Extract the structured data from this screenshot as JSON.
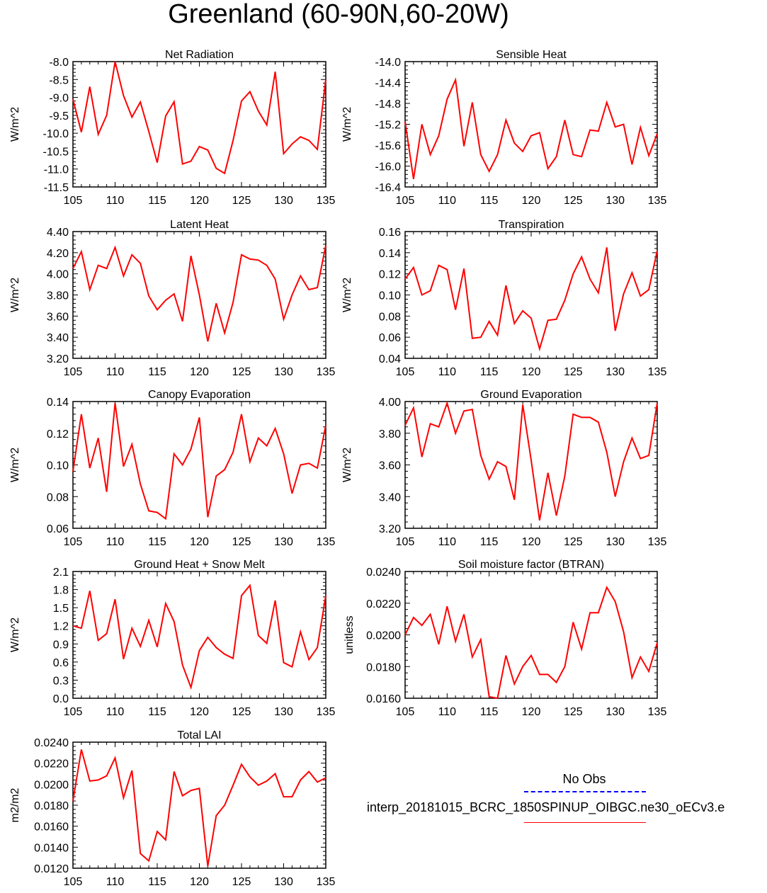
{
  "title": "Greenland (60-90N,60-20W)",
  "legend": {
    "obs_label": "No Obs",
    "model_label": "interp_20181015_BCRC_1850SPINUP_OIBGC.ne30_oECv3.e",
    "obs_color": "#0000ff",
    "model_color": "#ff0000"
  },
  "chart_data": [
    {
      "type": "line",
      "title": "Net Radiation",
      "ylabel": "W/m^2",
      "xlim": [
        105,
        135
      ],
      "ylim": [
        -11.5,
        -8.0
      ],
      "yticks": [
        "-8.0",
        "-8.5",
        "-9.0",
        "-9.5",
        "-10.0",
        "-10.5",
        "-11.0",
        "-11.5"
      ],
      "xticks": [
        "105",
        "110",
        "115",
        "120",
        "125",
        "130",
        "135"
      ],
      "x": [
        105,
        106,
        107,
        108,
        109,
        110,
        111,
        112,
        113,
        114,
        115,
        116,
        117,
        118,
        119,
        120,
        121,
        122,
        123,
        124,
        125,
        126,
        127,
        128,
        129,
        130,
        131,
        132,
        133,
        134,
        135
      ],
      "values": [
        -9.05,
        -9.97,
        -8.7,
        -10.03,
        -9.5,
        -8.0,
        -8.95,
        -9.55,
        -9.13,
        -9.95,
        -10.82,
        -9.52,
        -9.12,
        -10.86,
        -10.78,
        -10.37,
        -10.47,
        -10.98,
        -11.12,
        -10.2,
        -9.1,
        -8.84,
        -9.38,
        -9.77,
        -8.28,
        -10.57,
        -10.3,
        -10.1,
        -10.2,
        -10.45,
        -8.5
      ]
    },
    {
      "type": "line",
      "title": "Sensible Heat",
      "ylabel": "W/m^2",
      "xlim": [
        105,
        135
      ],
      "ylim": [
        -16.4,
        -14.0
      ],
      "yticks": [
        "-14.0",
        "-14.4",
        "-14.8",
        "-15.2",
        "-15.6",
        "-16.0",
        "-16.4"
      ],
      "xticks": [
        "105",
        "110",
        "115",
        "120",
        "125",
        "130",
        "135"
      ],
      "x": [
        105,
        106,
        107,
        108,
        109,
        110,
        111,
        112,
        113,
        114,
        115,
        116,
        117,
        118,
        119,
        120,
        121,
        122,
        123,
        124,
        125,
        126,
        127,
        128,
        129,
        130,
        131,
        132,
        133,
        134,
        135
      ],
      "values": [
        -15.15,
        -16.25,
        -15.2,
        -15.78,
        -15.42,
        -14.72,
        -14.35,
        -15.62,
        -14.78,
        -15.78,
        -16.1,
        -15.78,
        -15.12,
        -15.56,
        -15.72,
        -15.42,
        -15.36,
        -16.05,
        -15.82,
        -15.12,
        -15.78,
        -15.82,
        -15.31,
        -15.33,
        -14.78,
        -15.25,
        -15.2,
        -15.97,
        -15.26,
        -15.8,
        -15.38
      ]
    },
    {
      "type": "line",
      "title": "Latent Heat",
      "ylabel": "W/m^2",
      "xlim": [
        105,
        135
      ],
      "ylim": [
        3.2,
        4.4
      ],
      "yticks": [
        "4.40",
        "4.20",
        "4.00",
        "3.80",
        "3.60",
        "3.40",
        "3.20"
      ],
      "xticks": [
        "105",
        "110",
        "115",
        "120",
        "125",
        "130",
        "135"
      ],
      "x": [
        105,
        106,
        107,
        108,
        109,
        110,
        111,
        112,
        113,
        114,
        115,
        116,
        117,
        118,
        119,
        120,
        121,
        122,
        123,
        124,
        125,
        126,
        127,
        128,
        129,
        130,
        131,
        132,
        133,
        134,
        135
      ],
      "values": [
        4.05,
        4.21,
        3.85,
        4.08,
        4.05,
        4.25,
        3.98,
        4.18,
        4.1,
        3.79,
        3.66,
        3.75,
        3.81,
        3.55,
        4.17,
        3.8,
        3.36,
        3.72,
        3.44,
        3.73,
        4.18,
        4.14,
        4.13,
        4.08,
        3.95,
        3.57,
        3.8,
        3.98,
        3.85,
        3.87,
        4.27
      ]
    },
    {
      "type": "line",
      "title": "Transpiration",
      "ylabel": "W/m^2",
      "xlim": [
        105,
        135
      ],
      "ylim": [
        0.04,
        0.16
      ],
      "yticks": [
        "0.16",
        "0.14",
        "0.12",
        "0.10",
        "0.08",
        "0.06",
        "0.04"
      ],
      "xticks": [
        "105",
        "110",
        "115",
        "120",
        "125",
        "130",
        "135"
      ],
      "x": [
        105,
        106,
        107,
        108,
        109,
        110,
        111,
        112,
        113,
        114,
        115,
        116,
        117,
        118,
        119,
        120,
        121,
        122,
        123,
        124,
        125,
        126,
        127,
        128,
        129,
        130,
        131,
        132,
        133,
        134,
        135
      ],
      "values": [
        0.115,
        0.126,
        0.1,
        0.104,
        0.128,
        0.124,
        0.086,
        0.125,
        0.059,
        0.06,
        0.075,
        0.062,
        0.109,
        0.073,
        0.085,
        0.078,
        0.049,
        0.076,
        0.077,
        0.095,
        0.12,
        0.136,
        0.115,
        0.102,
        0.145,
        0.066,
        0.101,
        0.121,
        0.099,
        0.105,
        0.142
      ]
    },
    {
      "type": "line",
      "title": "Canopy Evaporation",
      "ylabel": "W/m^2",
      "xlim": [
        105,
        135
      ],
      "ylim": [
        0.06,
        0.14
      ],
      "yticks": [
        "0.14",
        "0.12",
        "0.10",
        "0.08",
        "0.06"
      ],
      "xticks": [
        "105",
        "110",
        "115",
        "120",
        "125",
        "130",
        "135"
      ],
      "x": [
        105,
        106,
        107,
        108,
        109,
        110,
        111,
        112,
        113,
        114,
        115,
        116,
        117,
        118,
        119,
        120,
        121,
        122,
        123,
        124,
        125,
        126,
        127,
        128,
        129,
        130,
        131,
        132,
        133,
        134,
        135
      ],
      "values": [
        0.096,
        0.132,
        0.098,
        0.117,
        0.083,
        0.139,
        0.099,
        0.113,
        0.088,
        0.071,
        0.07,
        0.066,
        0.107,
        0.1,
        0.11,
        0.13,
        0.067,
        0.093,
        0.097,
        0.108,
        0.132,
        0.102,
        0.117,
        0.112,
        0.123,
        0.107,
        0.082,
        0.1,
        0.101,
        0.098,
        0.125
      ]
    },
    {
      "type": "line",
      "title": "Ground Evaporation",
      "ylabel": "W/m^2",
      "xlim": [
        105,
        135
      ],
      "ylim": [
        3.2,
        4.0
      ],
      "yticks": [
        "4.00",
        "3.80",
        "3.60",
        "3.40",
        "3.20"
      ],
      "xticks": [
        "105",
        "110",
        "115",
        "120",
        "125",
        "130",
        "135"
      ],
      "x": [
        105,
        106,
        107,
        108,
        109,
        110,
        111,
        112,
        113,
        114,
        115,
        116,
        117,
        118,
        119,
        120,
        121,
        122,
        123,
        124,
        125,
        126,
        127,
        128,
        129,
        130,
        131,
        132,
        133,
        134,
        135
      ],
      "values": [
        3.85,
        3.96,
        3.65,
        3.86,
        3.84,
        3.99,
        3.8,
        3.94,
        3.95,
        3.66,
        3.51,
        3.62,
        3.59,
        3.38,
        3.98,
        3.63,
        3.25,
        3.55,
        3.28,
        3.53,
        3.92,
        3.9,
        3.9,
        3.87,
        3.68,
        3.4,
        3.62,
        3.77,
        3.64,
        3.66,
        3.99
      ]
    },
    {
      "type": "line",
      "title": "Ground Heat + Snow Melt",
      "ylabel": "W/m^2",
      "xlim": [
        105,
        135
      ],
      "ylim": [
        0.0,
        2.1
      ],
      "yticks": [
        "2.1",
        "1.8",
        "1.5",
        "1.2",
        "0.9",
        "0.6",
        "0.3",
        "0.0"
      ],
      "xticks": [
        "105",
        "110",
        "115",
        "120",
        "125",
        "130",
        "135"
      ],
      "x": [
        105,
        106,
        107,
        108,
        109,
        110,
        111,
        112,
        113,
        114,
        115,
        116,
        117,
        118,
        119,
        120,
        121,
        122,
        123,
        124,
        125,
        126,
        127,
        128,
        129,
        130,
        131,
        132,
        133,
        134,
        135
      ],
      "values": [
        1.2,
        1.16,
        1.78,
        0.96,
        1.07,
        1.64,
        0.65,
        1.16,
        0.86,
        1.29,
        0.85,
        1.57,
        1.27,
        0.55,
        0.18,
        0.79,
        1.01,
        0.84,
        0.73,
        0.66,
        1.7,
        1.87,
        1.04,
        0.91,
        1.62,
        0.59,
        0.52,
        1.1,
        0.64,
        0.84,
        1.7
      ]
    },
    {
      "type": "line",
      "title": "Soil moisture factor (BTRAN)",
      "ylabel": "unitless",
      "xlim": [
        105,
        135
      ],
      "ylim": [
        0.016,
        0.024
      ],
      "yticks": [
        "0.0240",
        "0.0220",
        "0.0200",
        "0.0180",
        "0.0160"
      ],
      "xticks": [
        "105",
        "110",
        "115",
        "120",
        "125",
        "130",
        "135"
      ],
      "x": [
        105,
        106,
        107,
        108,
        109,
        110,
        111,
        112,
        113,
        114,
        115,
        116,
        117,
        118,
        119,
        120,
        121,
        122,
        123,
        124,
        125,
        126,
        127,
        128,
        129,
        130,
        131,
        132,
        133,
        134,
        135
      ],
      "values": [
        0.02,
        0.0211,
        0.0206,
        0.0213,
        0.0194,
        0.0218,
        0.0196,
        0.0213,
        0.0186,
        0.0197,
        0.0161,
        0.016,
        0.0187,
        0.0169,
        0.018,
        0.0187,
        0.0175,
        0.0175,
        0.017,
        0.018,
        0.0208,
        0.0191,
        0.0214,
        0.0214,
        0.023,
        0.0221,
        0.0202,
        0.0173,
        0.0186,
        0.0177,
        0.0195
      ]
    },
    {
      "type": "line",
      "title": "Total LAI",
      "ylabel": "m2/m2",
      "xlim": [
        105,
        135
      ],
      "ylim": [
        0.012,
        0.024
      ],
      "yticks": [
        "0.0240",
        "0.0220",
        "0.0200",
        "0.0180",
        "0.0160",
        "0.0140",
        "0.0120"
      ],
      "xticks": [
        "105",
        "110",
        "115",
        "120",
        "125",
        "130",
        "135"
      ],
      "x": [
        105,
        106,
        107,
        108,
        109,
        110,
        111,
        112,
        113,
        114,
        115,
        116,
        117,
        118,
        119,
        120,
        121,
        122,
        123,
        124,
        125,
        126,
        127,
        128,
        129,
        130,
        131,
        132,
        133,
        134,
        135
      ],
      "values": [
        0.0184,
        0.0233,
        0.0203,
        0.0204,
        0.0208,
        0.0225,
        0.0187,
        0.0213,
        0.0134,
        0.0127,
        0.0155,
        0.0147,
        0.0212,
        0.0189,
        0.0194,
        0.0196,
        0.0122,
        0.017,
        0.018,
        0.0199,
        0.0219,
        0.0207,
        0.0199,
        0.0203,
        0.021,
        0.0188,
        0.0188,
        0.0204,
        0.0212,
        0.0202,
        0.0206
      ]
    }
  ]
}
